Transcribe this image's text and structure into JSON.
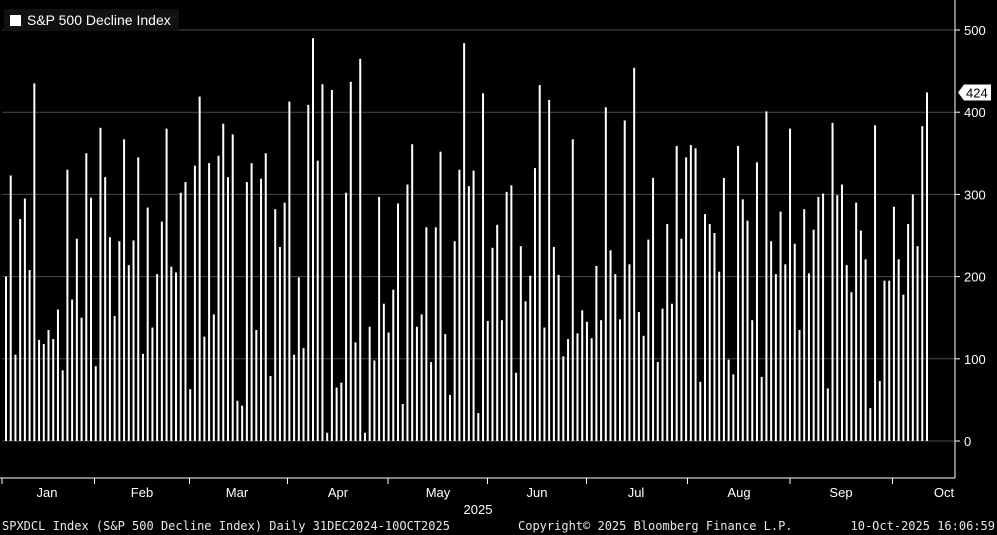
{
  "chart_data": {
    "type": "bar",
    "title": "",
    "xlabel": "2025",
    "ylabel": "",
    "ylim": [
      -40,
      540
    ],
    "yticks": [
      0,
      100,
      200,
      300,
      400,
      500
    ],
    "xticks": [
      "Jan",
      "Feb",
      "Mar",
      "Apr",
      "May",
      "Jun",
      "Jul",
      "Aug",
      "Sep",
      "Oct"
    ],
    "grid": true,
    "legend": "top-left",
    "series": [
      {
        "name": "S&P 500 Decline Index",
        "color": "#ffffff",
        "last_value_label": "424",
        "values": [
          200,
          323,
          105,
          270,
          295,
          208,
          435,
          123,
          118,
          135,
          124,
          160,
          86,
          330,
          172,
          246,
          150,
          350,
          296,
          91,
          381,
          321,
          248,
          152,
          243,
          367,
          214,
          244,
          345,
          106,
          284,
          138,
          203,
          267,
          380,
          212,
          205,
          302,
          315,
          63,
          335,
          419,
          127,
          338,
          154,
          347,
          386,
          321,
          373,
          49,
          43,
          315,
          338,
          135,
          319,
          350,
          79,
          282,
          236,
          290,
          413,
          105,
          199,
          113,
          409,
          490,
          341,
          434,
          10,
          427,
          65,
          71,
          302,
          437,
          120,
          465,
          10,
          139,
          98,
          297,
          167,
          132,
          184,
          289,
          45,
          312,
          361,
          139,
          154,
          260,
          96,
          260,
          352,
          130,
          56,
          243,
          330,
          484,
          310,
          329,
          34,
          423,
          146,
          235,
          263,
          147,
          303,
          311,
          83,
          237,
          170,
          201,
          332,
          433,
          138,
          415,
          236,
          202,
          103,
          124,
          367,
          131,
          159,
          145,
          125,
          213,
          147,
          406,
          232,
          203,
          148,
          390,
          215,
          454,
          157,
          128,
          245,
          320,
          96,
          161,
          264,
          167,
          359,
          246,
          345,
          360,
          356,
          72,
          276,
          264,
          253,
          206,
          320,
          99,
          81,
          359,
          294,
          268,
          147,
          339,
          78,
          401,
          243,
          203,
          279,
          215,
          380,
          240,
          135,
          282,
          204,
          257,
          297,
          301,
          64,
          387,
          299,
          312,
          214,
          181,
          290,
          256,
          221,
          40,
          384,
          73,
          195,
          195,
          285,
          221,
          178,
          264,
          300,
          237,
          383,
          424
        ]
      }
    ]
  },
  "footer": {
    "left": "SPXDCL Index (S&P 500 Decline Index) Daily 31DEC2024-10OCT2025",
    "center": "Copyright© 2025 Bloomberg Finance L.P.",
    "right": "10-Oct-2025 16:06:59"
  }
}
